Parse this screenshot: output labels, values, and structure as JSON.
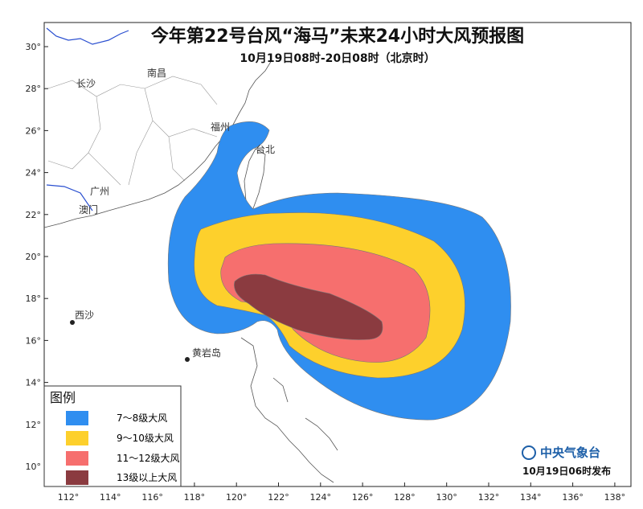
{
  "title": "今年第22号台风“海马”未来24小时大风预报图",
  "subtitle": "10月19日08时-20日08时（北京时）",
  "places": [
    "南昌",
    "长沙",
    "福州",
    "台北",
    "广州",
    "澳门",
    "西沙",
    "黄岩岛"
  ],
  "lat_ticks": [
    {
      "value": 10,
      "label": "10°"
    },
    {
      "value": 12,
      "label": "12°"
    },
    {
      "value": 14,
      "label": "14°"
    },
    {
      "value": 16,
      "label": "16°"
    },
    {
      "value": 18,
      "label": "18°"
    },
    {
      "value": 20,
      "label": "20°"
    },
    {
      "value": 22,
      "label": "22°"
    },
    {
      "value": 24,
      "label": "24°"
    },
    {
      "value": 26,
      "label": "26°"
    },
    {
      "value": 28,
      "label": "28°"
    },
    {
      "value": 30,
      "label": "30°"
    }
  ],
  "lon_ticks": [
    {
      "value": 112,
      "label": "112°"
    },
    {
      "value": 114,
      "label": "114°"
    },
    {
      "value": 116,
      "label": "116°"
    },
    {
      "value": 118,
      "label": "118°"
    },
    {
      "value": 120,
      "label": "120°"
    },
    {
      "value": 122,
      "label": "122°"
    },
    {
      "value": 124,
      "label": "124°"
    },
    {
      "value": 126,
      "label": "126°"
    },
    {
      "value": 128,
      "label": "128°"
    },
    {
      "value": 130,
      "label": "130°"
    },
    {
      "value": 132,
      "label": "132°"
    },
    {
      "value": 134,
      "label": "134°"
    },
    {
      "value": 136,
      "label": "136°"
    },
    {
      "value": 138,
      "label": "138°"
    }
  ],
  "legend": {
    "title": "图例",
    "items": [
      {
        "label": "7～8级大风",
        "color": "#2f8ef0"
      },
      {
        "label": "9～10级大风",
        "color": "#fdd02c"
      },
      {
        "label": "11～12级大风",
        "color": "#f66f6e"
      },
      {
        "label": "13级以上大风",
        "color": "#8b3b40"
      }
    ]
  },
  "footer": {
    "agency": "中央气象台",
    "issued": "10月19日06时发布"
  }
}
